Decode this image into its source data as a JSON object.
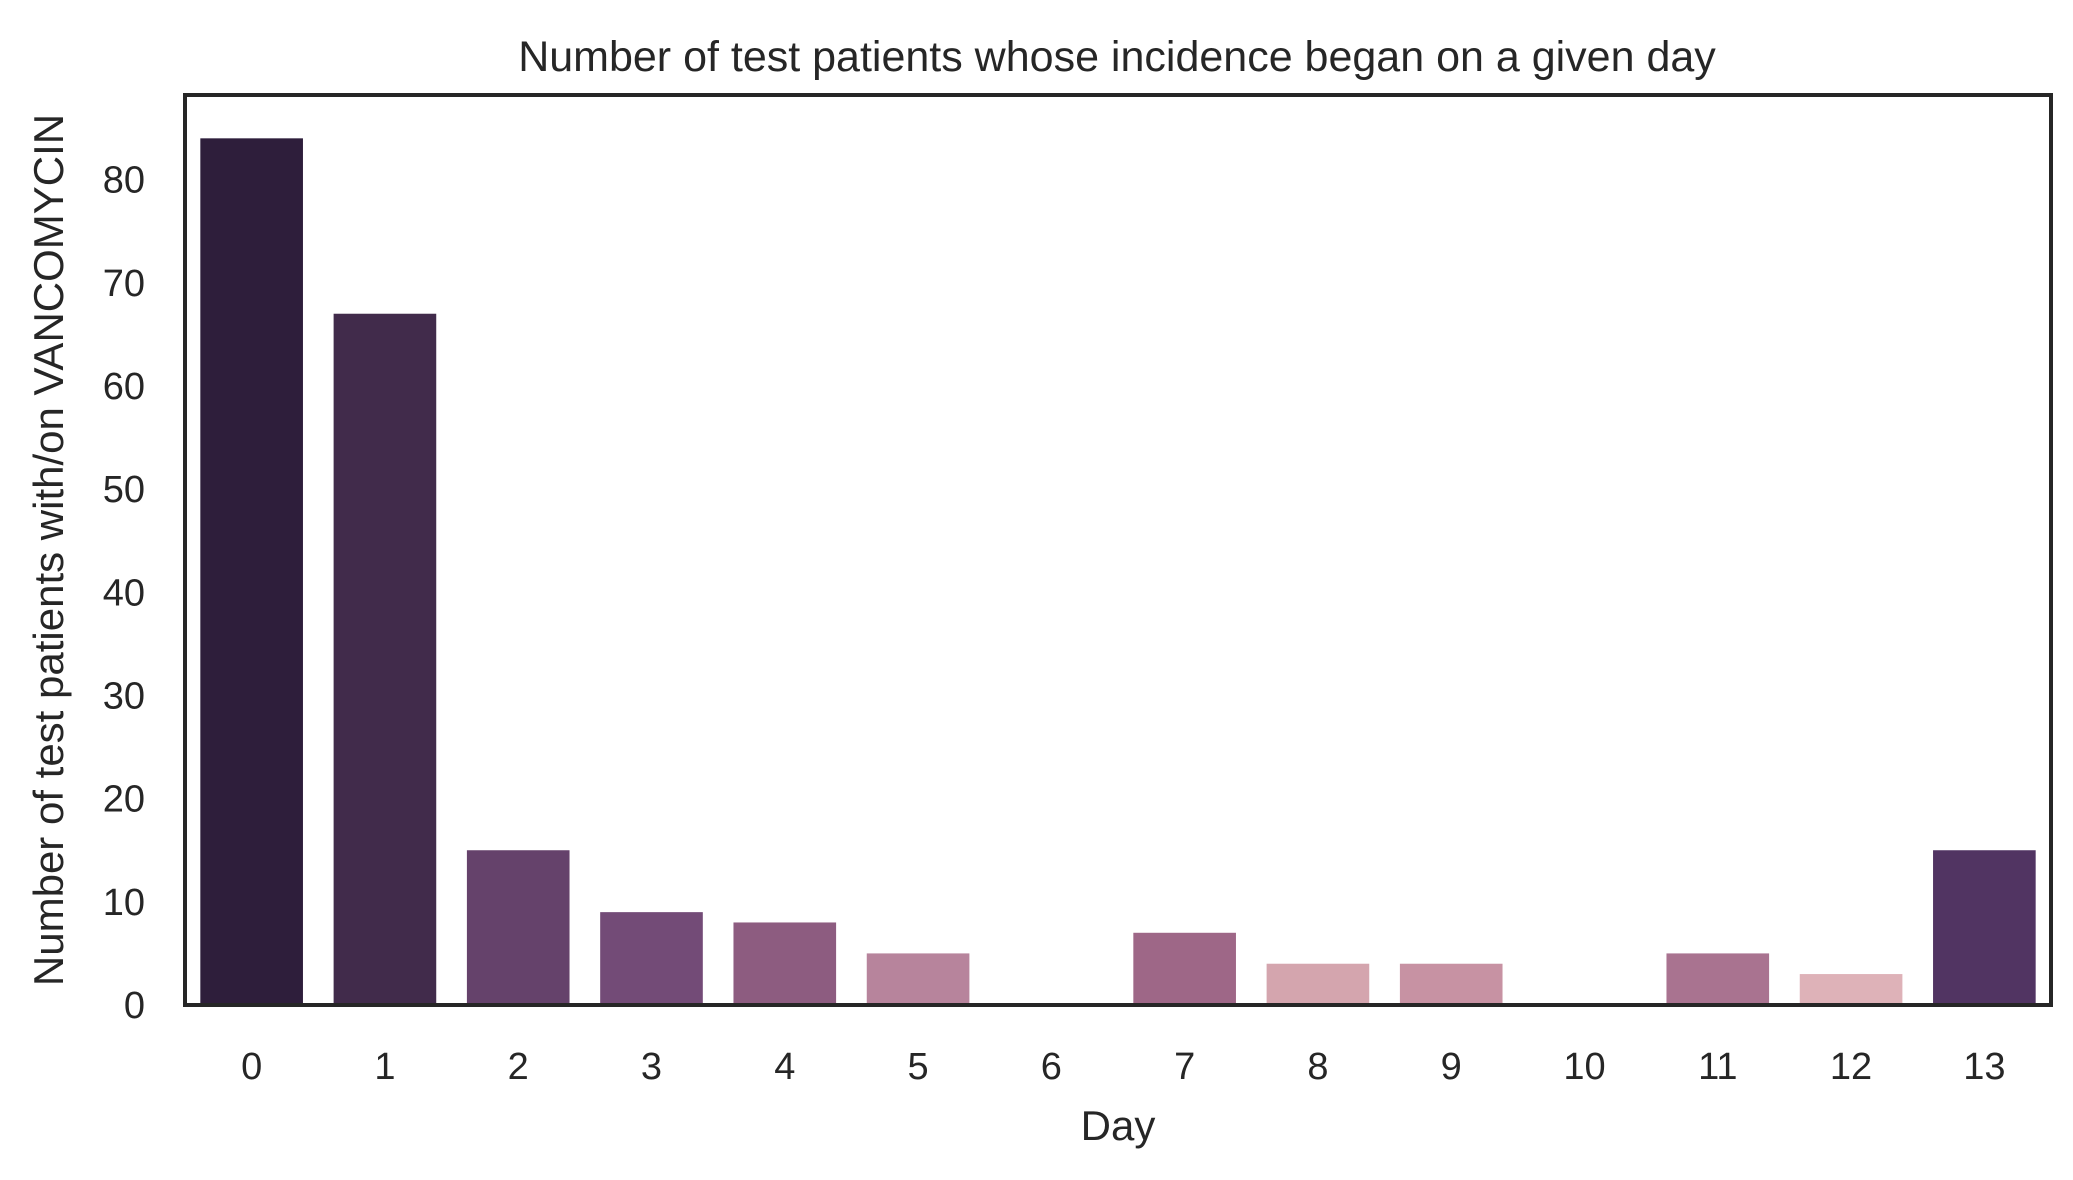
{
  "chart_data": {
    "type": "bar",
    "title": "Number of test patients whose incidence began on a given day",
    "xlabel": "Day",
    "ylabel": "Number of test patients with/on VANCOMYCIN",
    "categories": [
      "0",
      "1",
      "2",
      "3",
      "4",
      "5",
      "6",
      "7",
      "8",
      "9",
      "10",
      "11",
      "12",
      "13"
    ],
    "values": [
      84,
      67,
      15,
      9,
      8,
      5,
      0,
      7,
      4,
      4,
      0,
      5,
      3,
      15
    ],
    "bar_colors": [
      "#2e1e3b",
      "#412b4b",
      "#65426b",
      "#734b77",
      "#8d5c80",
      "#b7849c",
      "#ffffff",
      "#9e6787",
      "#d4a5ae",
      "#c792a3",
      "#ffffff",
      "#a97390",
      "#deb2b8",
      "#513462"
    ],
    "yticks": [
      0,
      10,
      20,
      30,
      40,
      50,
      60,
      70,
      80
    ],
    "ylim": [
      0,
      88.2
    ],
    "grid": false,
    "legend": "none"
  }
}
